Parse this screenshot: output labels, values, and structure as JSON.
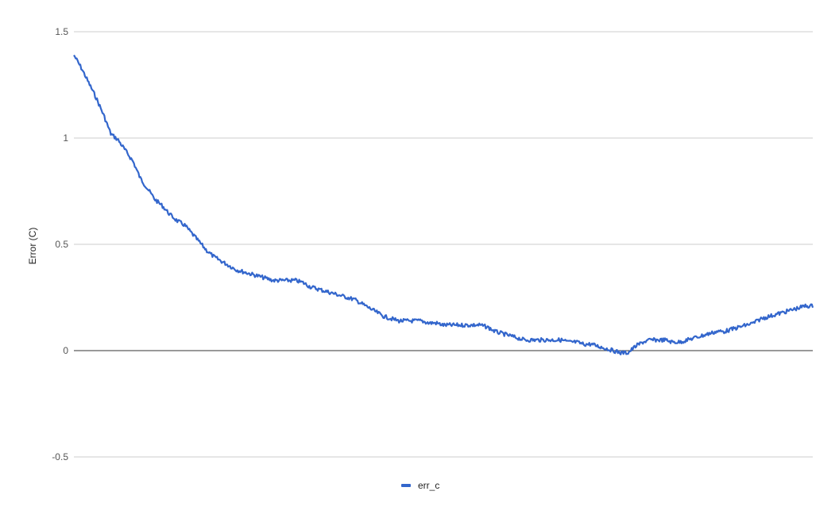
{
  "chart_data": {
    "type": "line",
    "title": "",
    "xlabel": "",
    "ylabel": "Error (C)",
    "ylim": [
      -0.5,
      1.5
    ],
    "yticks": [
      1.5,
      1,
      0.5,
      0,
      -0.5
    ],
    "ytick_labels": [
      "1.5",
      "1",
      "0.5",
      "0",
      "-0.5"
    ],
    "grid": true,
    "x_axis_labels_shown": false,
    "legend_position": "bottom",
    "series": [
      {
        "name": "err_c",
        "color": "#3366cc",
        "x": [
          0,
          1,
          2,
          3,
          4,
          5,
          6,
          7,
          8,
          9,
          10,
          11,
          12,
          13,
          14,
          15,
          16,
          17,
          18,
          19,
          20,
          21,
          22,
          23,
          24,
          25,
          26,
          27,
          28,
          29,
          30,
          31,
          32,
          33,
          34,
          35,
          36,
          37,
          38,
          39,
          40,
          41,
          42,
          43,
          44,
          45,
          46,
          47,
          48,
          49,
          50,
          51,
          52,
          53,
          54,
          55,
          56,
          57,
          58,
          59,
          60,
          61,
          62,
          63,
          64,
          65,
          66,
          67,
          68,
          69,
          70,
          71,
          72,
          73,
          74,
          75,
          76,
          77,
          78,
          79,
          80,
          81,
          82,
          83,
          84,
          85,
          86,
          87,
          88,
          89,
          90,
          91,
          92,
          93,
          94,
          95,
          96,
          97,
          98,
          99,
          100
        ],
        "values": [
          1.39,
          1.33,
          1.26,
          1.19,
          1.11,
          1.02,
          0.99,
          0.94,
          0.89,
          0.81,
          0.76,
          0.71,
          0.68,
          0.64,
          0.61,
          0.59,
          0.55,
          0.51,
          0.47,
          0.44,
          0.42,
          0.4,
          0.38,
          0.37,
          0.36,
          0.35,
          0.34,
          0.33,
          0.33,
          0.33,
          0.33,
          0.32,
          0.3,
          0.29,
          0.28,
          0.27,
          0.26,
          0.25,
          0.24,
          0.22,
          0.2,
          0.18,
          0.16,
          0.15,
          0.14,
          0.14,
          0.14,
          0.14,
          0.13,
          0.13,
          0.12,
          0.12,
          0.12,
          0.12,
          0.12,
          0.12,
          0.11,
          0.09,
          0.08,
          0.07,
          0.06,
          0.05,
          0.05,
          0.05,
          0.05,
          0.05,
          0.05,
          0.04,
          0.04,
          0.03,
          0.03,
          0.02,
          0.01,
          0.0,
          -0.01,
          -0.01,
          0.02,
          0.04,
          0.05,
          0.05,
          0.05,
          0.04,
          0.04,
          0.05,
          0.06,
          0.07,
          0.08,
          0.09,
          0.09,
          0.1,
          0.11,
          0.12,
          0.13,
          0.15,
          0.16,
          0.17,
          0.18,
          0.19,
          0.2,
          0.21,
          0.21
        ]
      }
    ]
  }
}
